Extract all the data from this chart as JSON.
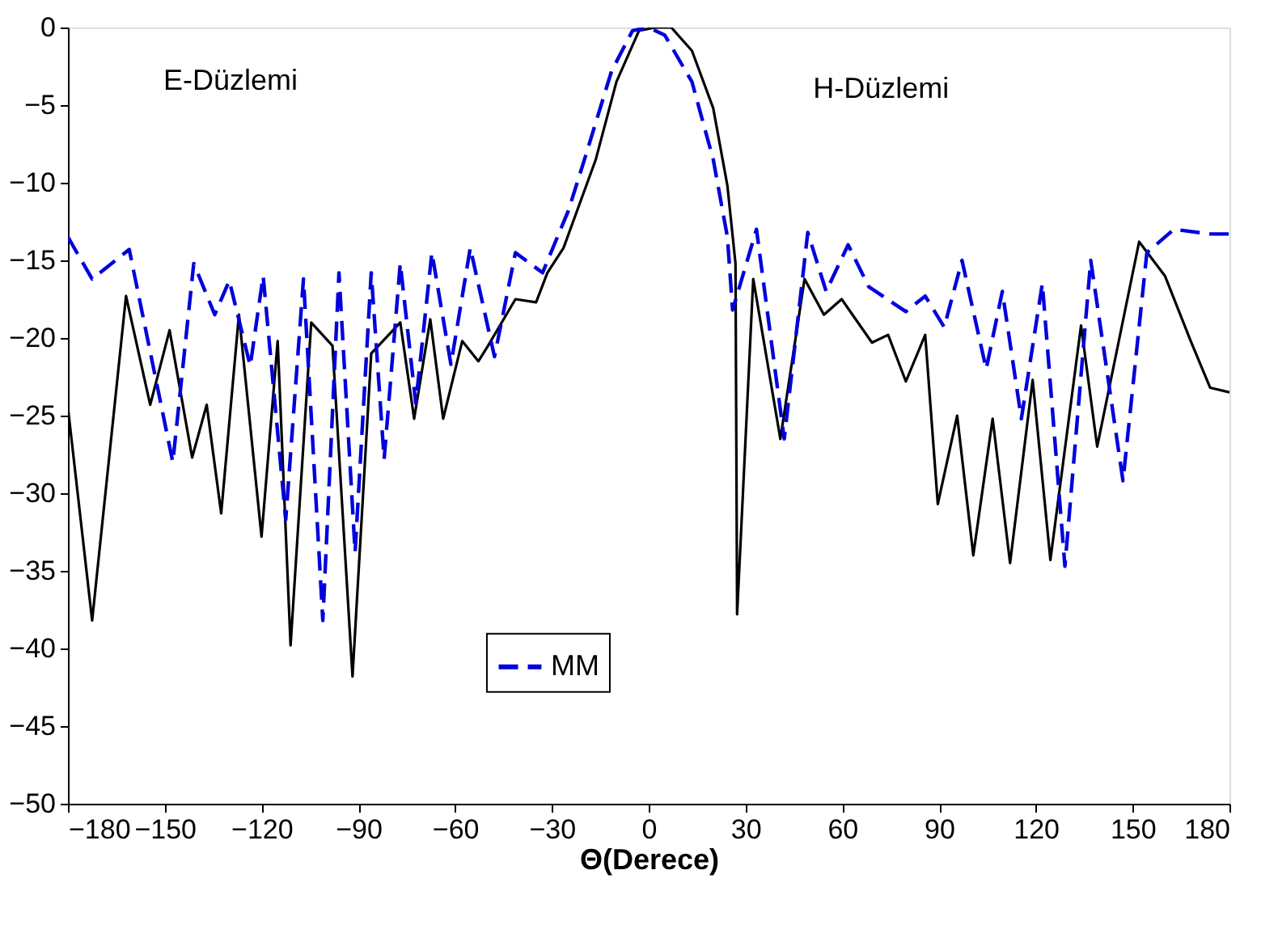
{
  "chart_data": {
    "type": "line",
    "xlabel": "Θ(Derece)",
    "xlim": [
      -180,
      180
    ],
    "xticks": [
      -180,
      -150,
      -120,
      -90,
      -60,
      -30,
      0,
      30,
      60,
      90,
      120,
      150,
      180
    ],
    "ylim": [
      -50,
      0
    ],
    "yticks": [
      -50,
      -45,
      -40,
      -35,
      -30,
      -25,
      -20,
      -15,
      -10,
      -5,
      0
    ],
    "grid": false,
    "legend": "bottom",
    "marker": "none",
    "annotations": [
      "E-Düzlemi",
      "H-Düzlemi"
    ],
    "series": [
      {
        "color": "#000000",
        "line_style": "solid",
        "x": [
          -180,
          -172.5,
          -162,
          -154.5,
          -148.5,
          -141.5,
          -137,
          -132.5,
          -127,
          -120,
          -115,
          -111,
          -104.6,
          -98,
          -91.8,
          -86,
          -77,
          -72.7,
          -67.7,
          -63.7,
          -57.8,
          -52.8,
          -49.8,
          -41.3,
          -34.9,
          -31.4,
          -26.4,
          -16.4,
          -10,
          -3,
          2,
          7,
          13.4,
          20,
          24.4,
          26.9,
          27.4,
          32.4,
          40.8,
          48.3,
          54.3,
          59.8,
          69.2,
          74.2,
          79.7,
          85.7,
          89.6,
          95.6,
          100.6,
          106.6,
          112,
          119,
          124.5,
          134,
          139,
          152,
          160,
          168,
          174,
          180
        ],
        "values": [
          -24.5,
          -38.2,
          -17.3,
          -24.3,
          -19.5,
          -27.7,
          -24.3,
          -31.3,
          -18.5,
          -32.8,
          -20.2,
          -39.8,
          -19,
          -20.5,
          -41.8,
          -21,
          -19,
          -25.2,
          -18.8,
          -25.2,
          -20.2,
          -21.5,
          -20.5,
          -17.5,
          -17.7,
          -15.8,
          -14.2,
          -8.5,
          -3.5,
          -0.2,
          0,
          0,
          -1.5,
          -5.2,
          -10.2,
          -15.2,
          -37.8,
          -16.2,
          -26.5,
          -16.2,
          -18.5,
          -17.5,
          -20.3,
          -19.8,
          -22.8,
          -19.8,
          -30.7,
          -25,
          -34,
          -25.2,
          -34.5,
          -22.7,
          -34.3,
          -19.2,
          -27,
          -13.8,
          -16,
          -20.2,
          -23.2,
          -23.5
        ]
      },
      {
        "name": "MM",
        "color": "#0000dd",
        "line_style": "dashed",
        "x": [
          -180,
          -172.5,
          -161,
          -147.5,
          -141,
          -134.5,
          -130,
          -123.5,
          -119.5,
          -112.5,
          -107,
          -101,
          -96,
          -91,
          -86,
          -82,
          -77,
          -72.2,
          -67.2,
          -61.3,
          -55.3,
          -47.8,
          -41.3,
          -32.9,
          -24.9,
          -19.9,
          -11.5,
          -5,
          0,
          5,
          13.4,
          20,
          24.4,
          26,
          33.4,
          42,
          49.3,
          55,
          61.8,
          68.2,
          79.7,
          85.7,
          91.6,
          97.1,
          104.6,
          109.6,
          115.5,
          122,
          129,
          137,
          147,
          154.4,
          162.8,
          174,
          180
        ],
        "values": [
          -13.5,
          -16.2,
          -14.3,
          -28,
          -15.2,
          -18.5,
          -16.3,
          -21.8,
          -16,
          -31.7,
          -16.2,
          -38.2,
          -15.8,
          -33.8,
          -15.8,
          -27.8,
          -15.2,
          -24.2,
          -14.5,
          -21.7,
          -14.2,
          -21.2,
          -14.5,
          -15.8,
          -11.8,
          -8.5,
          -2.8,
          -0.2,
          0,
          -0.5,
          -3.5,
          -8.5,
          -13.5,
          -18.2,
          -13,
          -26.5,
          -13.2,
          -17,
          -14,
          -16.7,
          -18.3,
          -17.3,
          -19.3,
          -15,
          -22,
          -17,
          -25.2,
          -16.5,
          -34.7,
          -15,
          -29.2,
          -14.5,
          -13,
          -13.3,
          -13.3
        ]
      }
    ]
  }
}
